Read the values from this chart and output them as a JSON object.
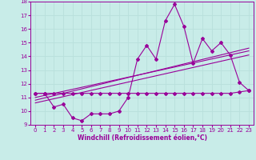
{
  "xlabel": "Windchill (Refroidissement éolien,°C)",
  "bg_color": "#c8ece8",
  "line_color": "#990099",
  "grid_color": "#b8e0dc",
  "xlim": [
    -0.5,
    23.5
  ],
  "ylim": [
    9,
    18
  ],
  "yticks": [
    9,
    10,
    11,
    12,
    13,
    14,
    15,
    16,
    17,
    18
  ],
  "xticks": [
    0,
    1,
    2,
    3,
    4,
    5,
    6,
    7,
    8,
    9,
    10,
    11,
    12,
    13,
    14,
    15,
    16,
    17,
    18,
    19,
    20,
    21,
    22,
    23
  ],
  "series1_x": [
    0,
    1,
    2,
    3,
    4,
    5,
    6,
    7,
    8,
    9,
    10,
    11,
    12,
    13,
    14,
    15,
    16,
    17,
    18,
    19,
    20,
    21,
    22,
    23
  ],
  "series1_y": [
    11.3,
    11.3,
    10.3,
    10.5,
    9.5,
    9.3,
    9.8,
    9.8,
    9.8,
    10.0,
    11.0,
    13.8,
    14.8,
    13.8,
    16.6,
    17.8,
    16.2,
    13.5,
    15.3,
    14.4,
    15.0,
    14.1,
    12.1,
    11.5
  ],
  "series2_x": [
    0,
    1,
    2,
    3,
    4,
    5,
    6,
    7,
    8,
    9,
    10,
    11,
    12,
    13,
    14,
    15,
    16,
    17,
    18,
    19,
    20,
    21,
    22,
    23
  ],
  "series2_y": [
    11.3,
    11.3,
    11.3,
    11.3,
    11.3,
    11.3,
    11.3,
    11.3,
    11.3,
    11.3,
    11.3,
    11.3,
    11.3,
    11.3,
    11.3,
    11.3,
    11.3,
    11.3,
    11.3,
    11.3,
    11.3,
    11.3,
    11.4,
    11.5
  ],
  "trend1_x": [
    0,
    23
  ],
  "trend1_y": [
    11.0,
    14.4
  ],
  "trend2_x": [
    0,
    23
  ],
  "trend2_y": [
    10.8,
    14.6
  ],
  "trend3_x": [
    0,
    23
  ],
  "trend3_y": [
    10.6,
    14.1
  ]
}
